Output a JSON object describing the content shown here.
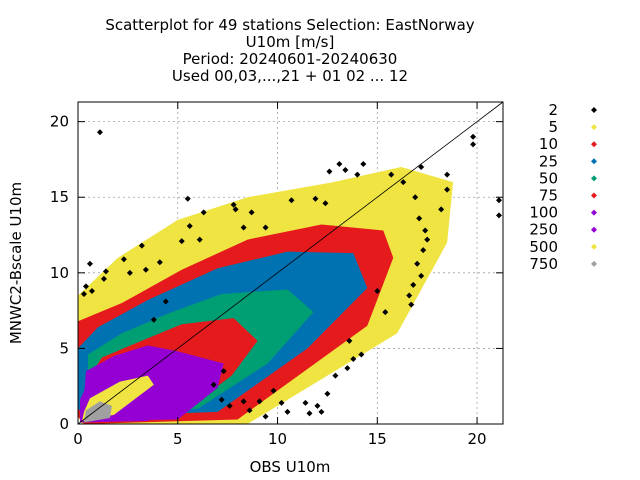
{
  "chart_data": {
    "type": "scatter",
    "title_lines": [
      "Scatterplot for   49 stations Selection: EastNorway",
      "U10m [m/s]",
      "Period: 20240601-20240630",
      "Used 00,03,...,21 + 01 02 ... 12"
    ],
    "xlabel": "OBS U10m",
    "ylabel": "MNWC2-Bscale U10m",
    "xlim": [
      0,
      21.3
    ],
    "ylim": [
      0,
      21.3
    ],
    "xticks": [
      0,
      5,
      10,
      15,
      20
    ],
    "yticks": [
      0,
      5,
      10,
      15,
      20
    ],
    "grid": true,
    "diagonal": "y = x",
    "legend_position": "right",
    "density_classes": [
      {
        "name": "2",
        "color": "#000000"
      },
      {
        "name": "5",
        "color": "#f0e442"
      },
      {
        "name": "10",
        "color": "#e41a1c"
      },
      {
        "name": "25",
        "color": "#0072b2"
      },
      {
        "name": "50",
        "color": "#009e73"
      },
      {
        "name": "75",
        "color": "#e41a1c"
      },
      {
        "name": "100",
        "color": "#9400d3"
      },
      {
        "name": "250",
        "color": "#9400d3"
      },
      {
        "name": "500",
        "color": "#f0e442"
      },
      {
        "name": "750",
        "color": "#a0a0a0"
      }
    ],
    "outlier_points": [
      [
        14.3,
        17.2
      ],
      [
        15.7,
        16.5
      ],
      [
        16.3,
        16.0
      ],
      [
        17.2,
        17.0
      ],
      [
        16.9,
        15.0
      ],
      [
        18.5,
        16.5
      ],
      [
        18.5,
        15.5
      ],
      [
        19.8,
        19.0
      ],
      [
        19.8,
        18.5
      ],
      [
        21.1,
        14.8
      ],
      [
        21.1,
        13.8
      ],
      [
        18.2,
        14.2
      ],
      [
        17.1,
        13.6
      ],
      [
        17.4,
        12.8
      ],
      [
        17.5,
        12.2
      ],
      [
        17.3,
        11.5
      ],
      [
        17.0,
        10.6
      ],
      [
        17.2,
        9.8
      ],
      [
        16.8,
        9.2
      ],
      [
        16.6,
        8.5
      ],
      [
        16.7,
        7.9
      ],
      [
        15.0,
        8.8
      ],
      [
        15.4,
        7.4
      ],
      [
        13.6,
        5.5
      ],
      [
        13.8,
        4.3
      ],
      [
        14.2,
        4.6
      ],
      [
        13.5,
        3.7
      ],
      [
        12.9,
        3.2
      ],
      [
        12.5,
        2.0
      ],
      [
        11.4,
        1.4
      ],
      [
        11.6,
        0.7
      ],
      [
        12.2,
        0.8
      ],
      [
        12.0,
        1.2
      ],
      [
        10.5,
        0.8
      ],
      [
        10.2,
        1.4
      ],
      [
        7.2,
        1.6
      ],
      [
        7.6,
        1.2
      ],
      [
        8.6,
        0.9
      ],
      [
        9.1,
        1.5
      ],
      [
        9.4,
        0.5
      ],
      [
        1.1,
        19.3
      ],
      [
        0.6,
        10.6
      ],
      [
        0.4,
        9.1
      ],
      [
        0.3,
        8.6
      ],
      [
        0.7,
        8.8
      ],
      [
        1.3,
        9.6
      ],
      [
        1.4,
        10.1
      ],
      [
        2.3,
        10.9
      ],
      [
        2.6,
        10.0
      ],
      [
        3.4,
        10.2
      ],
      [
        4.1,
        10.7
      ],
      [
        3.2,
        11.8
      ],
      [
        5.2,
        12.1
      ],
      [
        6.1,
        12.2
      ],
      [
        5.6,
        13.1
      ],
      [
        6.3,
        14.0
      ],
      [
        5.5,
        14.9
      ],
      [
        7.8,
        14.5
      ],
      [
        7.9,
        14.2
      ],
      [
        8.3,
        13.0
      ],
      [
        8.7,
        14.0
      ],
      [
        9.4,
        13.0
      ],
      [
        10.7,
        14.8
      ],
      [
        11.9,
        14.9
      ],
      [
        12.6,
        16.7
      ],
      [
        13.1,
        17.2
      ],
      [
        13.4,
        16.8
      ],
      [
        14.0,
        16.5
      ],
      [
        12.4,
        14.6
      ],
      [
        3.8,
        6.9
      ],
      [
        4.4,
        8.1
      ],
      [
        7.3,
        3.5
      ],
      [
        6.8,
        2.6
      ],
      [
        8.3,
        1.5
      ],
      [
        9.8,
        2.2
      ]
    ]
  }
}
